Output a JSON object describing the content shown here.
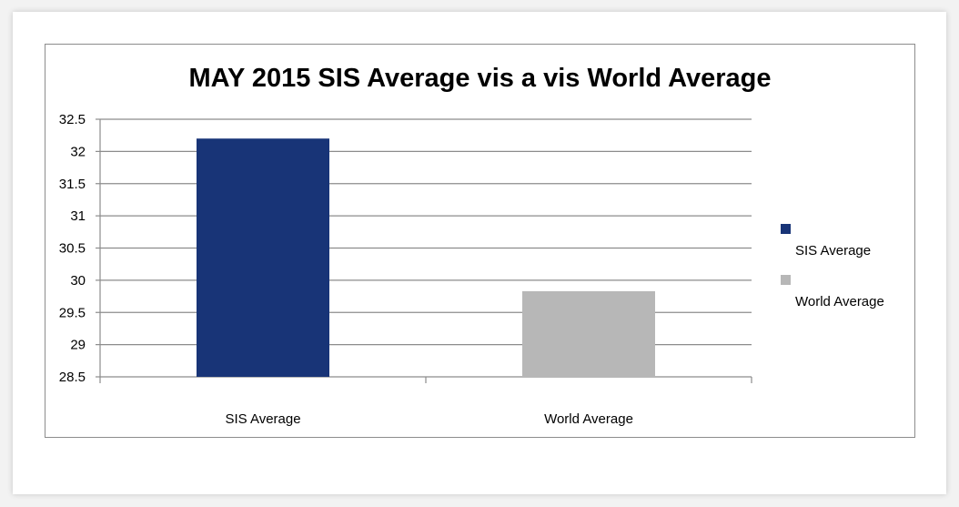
{
  "chart_data": {
    "type": "bar",
    "title": "MAY 2015 SIS Average vis a vis World Average",
    "xlabel": "",
    "ylabel": "",
    "categories": [
      "SIS Average",
      "World Average"
    ],
    "values": [
      32.2,
      29.83
    ],
    "colors": [
      "#183477",
      "#b7b7b7"
    ],
    "ylim": [
      28.5,
      32.5
    ],
    "yticks": [
      "28.5",
      "29",
      "29.5",
      "30",
      "30.5",
      "31",
      "31.5",
      "32",
      "32.5"
    ],
    "grid": true,
    "legend_position": "right",
    "legend": [
      {
        "label": "SIS Average",
        "color": "#183477"
      },
      {
        "label": "World Average",
        "color": "#b7b7b7"
      }
    ]
  }
}
